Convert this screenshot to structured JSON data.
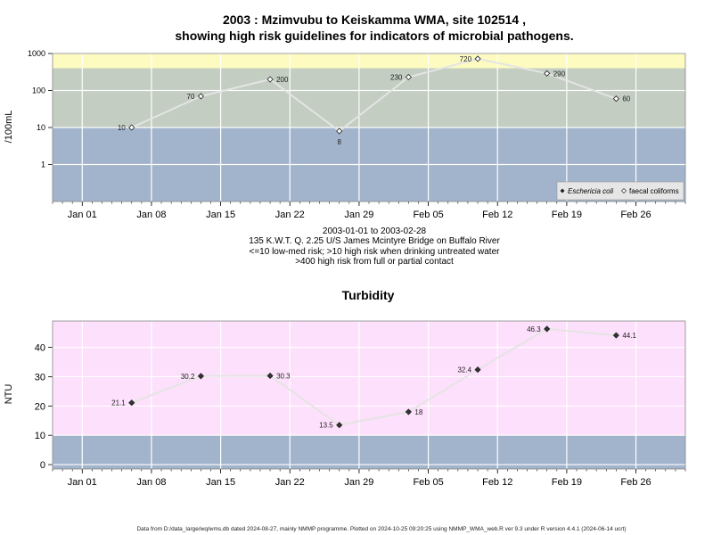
{
  "colors": {
    "band_low": "#a2b3cc",
    "band_med": "#c3cdc2",
    "band_high": "#fdfbc0",
    "turbidity_bg": "#fde0fb",
    "turbidity_low": "#a2b3cc",
    "grid": "#ffffff",
    "line": "#e4e4e4"
  },
  "chart_data": [
    {
      "type": "scatter",
      "title_line1": "2003 : Mzimvubu to Keiskamma WMA, site 102514 ,",
      "title_line2": "showing high risk guidelines for indicators of microbial pathogens.",
      "ylabel": "/100mL",
      "yscale": "log",
      "ylim": [
        0.1,
        1000
      ],
      "yticks": [
        "1",
        "10",
        "100",
        "1000"
      ],
      "xlim": [
        "2002-12-29",
        "2003-03-03"
      ],
      "xticks": [
        "Jan 01",
        "Jan 08",
        "Jan 15",
        "Jan 22",
        "Jan 29",
        "Feb 05",
        "Feb 12",
        "Feb 19",
        "Feb 26"
      ],
      "bands": [
        {
          "from": 0.1,
          "to": 10,
          "color": "#a2b3cc"
        },
        {
          "from": 10,
          "to": 400,
          "color": "#c3cdc2"
        },
        {
          "from": 400,
          "to": 1000,
          "color": "#fdfbc0"
        }
      ],
      "legend": {
        "position": "bottom-right",
        "items": [
          "Eschericia coli",
          "faecal coliforms"
        ]
      },
      "series": [
        {
          "name": "faecal coliforms",
          "x": [
            "2003-01-06",
            "2003-01-13",
            "2003-01-20",
            "2003-01-27",
            "2003-02-03",
            "2003-02-10",
            "2003-02-17",
            "2003-02-24"
          ],
          "values": [
            10,
            70,
            200,
            8,
            230,
            720,
            290,
            60
          ],
          "labels": [
            "10",
            "70",
            "200",
            "8",
            "230",
            "720",
            "290",
            "60"
          ],
          "label_side": [
            "left",
            "left",
            "right",
            "below",
            "left",
            "left",
            "right",
            "right"
          ]
        }
      ],
      "caption": [
        "2003-01-01 to 2003-02-28",
        "135 K.W.T. Q. 2.25 U/S James Mcintyre Bridge on Buffalo River",
        "<=10 low-med risk; >10 high risk when drinking untreated water",
        ">400 high risk from full or partial contact"
      ]
    },
    {
      "type": "line",
      "title": "Turbidity",
      "ylabel": "NTU",
      "ylim": [
        -1.5,
        49
      ],
      "yticks": [
        0,
        10,
        20,
        30,
        40
      ],
      "xlim": [
        "2002-12-29",
        "2003-03-03"
      ],
      "xticks": [
        "Jan 01",
        "Jan 08",
        "Jan 15",
        "Jan 22",
        "Jan 29",
        "Feb 05",
        "Feb 12",
        "Feb 19",
        "Feb 26"
      ],
      "bands": [
        {
          "from": -1.5,
          "to": 10,
          "color": "#a2b3cc"
        },
        {
          "from": 10,
          "to": 49,
          "color": "#fde0fb"
        }
      ],
      "series": [
        {
          "x": [
            "2003-01-06",
            "2003-01-13",
            "2003-01-20",
            "2003-01-27",
            "2003-02-03",
            "2003-02-10",
            "2003-02-17",
            "2003-02-24"
          ],
          "values": [
            21.1,
            30.2,
            30.3,
            13.5,
            18,
            32.4,
            46.3,
            44.1
          ],
          "labels": [
            "21.1",
            "30.2",
            "30.3",
            "13.5",
            "18",
            "32.4",
            "46.3",
            "44.1"
          ],
          "label_side": [
            "left",
            "left",
            "right",
            "left",
            "right",
            "left",
            "left",
            "right"
          ]
        }
      ]
    }
  ],
  "footer": "Data from D:/data_large/wq/wms.db dated 2024-08-27, mainly NMMP programme. Plotted on 2024-10-25 09:20:25 using NMMP_WMA_web.R ver 9.3 under R version 4.4.1 (2024-06-14 ucrt)"
}
